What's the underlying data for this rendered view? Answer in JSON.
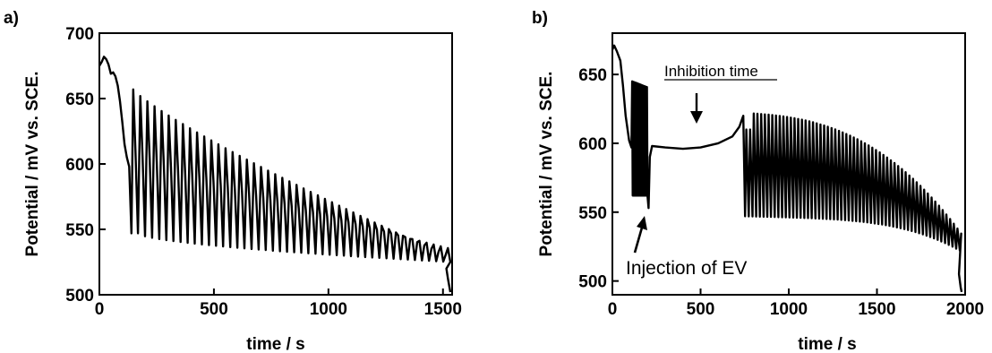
{
  "chart_data": [
    {
      "type": "line",
      "panel_label": "a)",
      "xlabel": "time / s",
      "ylabel": "Potential / mV vs. SCE.",
      "xlim": [
        0,
        1540
      ],
      "ylim": [
        500,
        700
      ],
      "xticks": [
        0,
        500,
        1000,
        1500
      ],
      "yticks": [
        500,
        550,
        600,
        650,
        700
      ],
      "grid": false,
      "series": [
        {
          "color": "#000000",
          "x": [
            0,
            10,
            20,
            30,
            40,
            50,
            60,
            70,
            80,
            90,
            100,
            110,
            120,
            130,
            140,
            150,
            175,
            200,
            250,
            300,
            400,
            500,
            600,
            700,
            800,
            900,
            1000,
            1100,
            1200,
            1300,
            1400,
            1450,
            1480,
            1500,
            1510,
            1520,
            1530
          ],
          "y": [
            675,
            678,
            682,
            680,
            676,
            669,
            670,
            667,
            660,
            648,
            632,
            615,
            605,
            598,
            547,
            657,
            550,
            658,
            544,
            640,
            541,
            630,
            539,
            615,
            536,
            600,
            533,
            583,
            530,
            565,
            528,
            538,
            527,
            530,
            520,
            512,
            502
          ],
          "note": "oscillation envelope: upper from ~657 at 150 s down to ~530 at 1500 s; lower from ~547 down to ~520; period ~31 s"
        }
      ]
    },
    {
      "type": "line",
      "panel_label": "b)",
      "xlabel": "time / s",
      "ylabel": "Potential / mV vs. SCE.",
      "xlim": [
        0,
        2000
      ],
      "ylim": [
        490,
        680
      ],
      "xticks": [
        0,
        500,
        1000,
        1500,
        2000
      ],
      "yticks": [
        500,
        550,
        600,
        650
      ],
      "grid": false,
      "annotations": [
        {
          "text": "Inhibition time",
          "underline": true,
          "x": 490,
          "y": 648
        },
        {
          "text": "Injection of EV",
          "x": 115,
          "y": 500
        }
      ],
      "series": [
        {
          "color": "#000000",
          "x": [
            0,
            10,
            20,
            40,
            60,
            80,
            100,
            110,
            120,
            200,
            210,
            220,
            300,
            400,
            500,
            600,
            700,
            740,
            750,
            800,
            900,
            1000,
            1200,
            1400,
            1600,
            1800,
            1850,
            1900,
            1950,
            1980
          ],
          "y": [
            668,
            670,
            668,
            662,
            645,
            615,
            600,
            598,
            650,
            553,
            590,
            597,
            598,
            597,
            596,
            600,
            608,
            620,
            545,
            622,
            624,
            620,
            608,
            590,
            565,
            540,
            530,
            525,
            510,
            492
          ],
          "note": "fast oscillations ~560-650 between 110-200 s; flat ~597 from 210-700 s; oscillations upper ~622->540, lower ~547->530 from 750-1980 s; period ~21 s"
        }
      ]
    }
  ]
}
